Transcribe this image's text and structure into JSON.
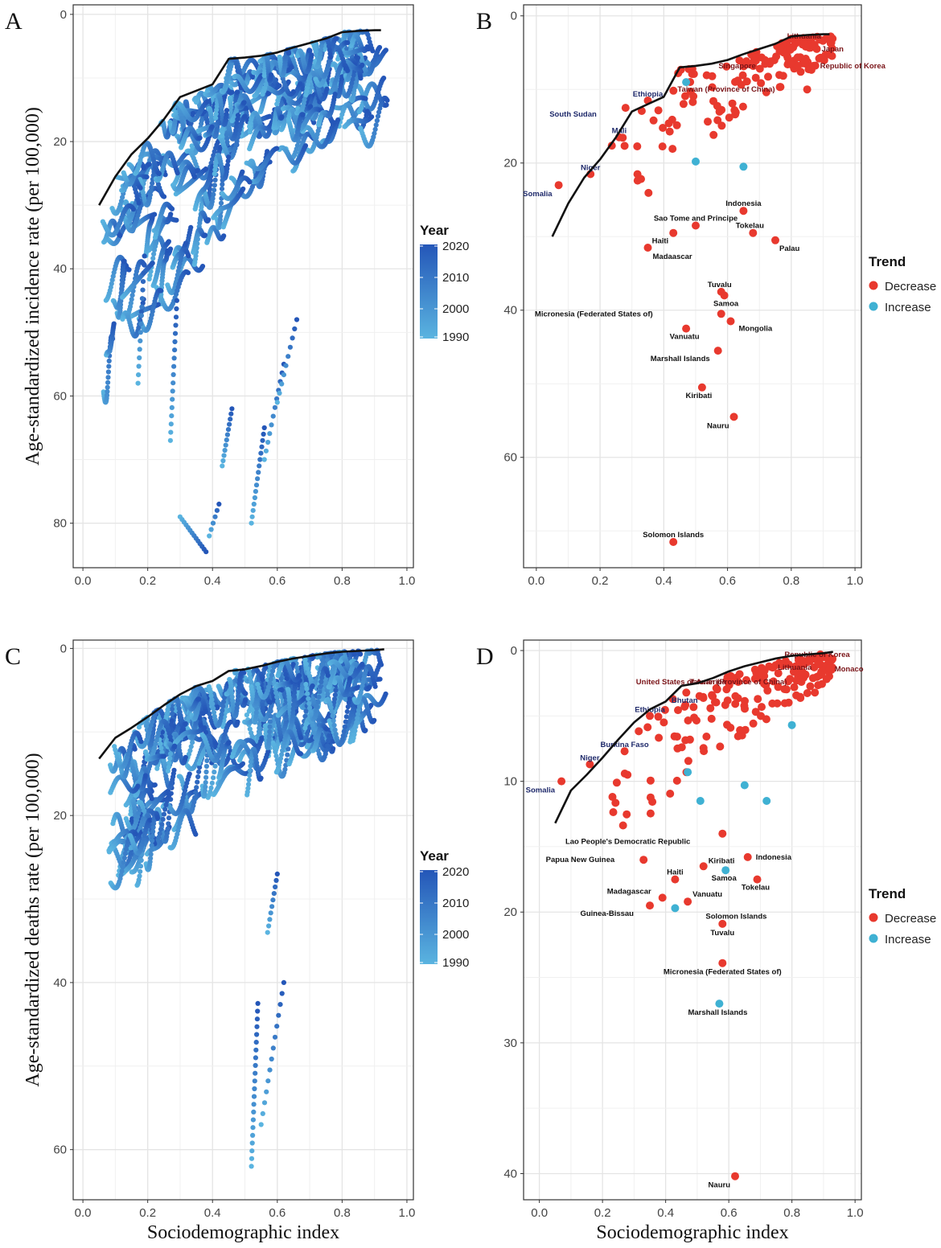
{
  "panels": {
    "A": {
      "letter": "A"
    },
    "B": {
      "letter": "B"
    },
    "C": {
      "letter": "C"
    },
    "D": {
      "letter": "D"
    }
  },
  "axis_titles": {
    "x": "Sociodemographic index",
    "y_top": "Age-standardized incidence rate (per 100,000)",
    "y_bottom": "Age-standardized deaths rate (per 100,000)"
  },
  "legends": {
    "year": {
      "title": "Year",
      "labels": [
        "2020",
        "2010",
        "2000",
        "1990"
      ],
      "color_high": "#2456b8",
      "color_low": "#5ab4e0"
    },
    "trend": {
      "title": "Trend",
      "items": [
        {
          "label": "Decrease",
          "color": "#e8392e"
        },
        {
          "label": "Increase",
          "color": "#3fb1d3"
        }
      ]
    }
  },
  "chart_data": [
    {
      "id": "A",
      "type": "scatter",
      "title": "",
      "xlabel": "Sociodemographic index",
      "ylabel": "Age-standardized incidence rate (per 100,000)",
      "xlim": [
        -0.03,
        1.02
      ],
      "ylim": [
        -1.5,
        87
      ],
      "y_reversed": true,
      "x_ticks": [
        "0.0",
        "0.2",
        "0.4",
        "0.6",
        "0.8",
        "1.0"
      ],
      "y_ticks": [
        "0",
        "20",
        "40",
        "60",
        "80"
      ],
      "frontier": {
        "x": [
          0.05,
          0.1,
          0.15,
          0.2,
          0.25,
          0.3,
          0.35,
          0.4,
          0.45,
          0.5,
          0.55,
          0.6,
          0.65,
          0.7,
          0.75,
          0.8,
          0.85,
          0.9,
          0.92
        ],
        "y": [
          30,
          25.5,
          22,
          19.5,
          16.5,
          13,
          12,
          11,
          7,
          6.8,
          6.5,
          6,
          5.2,
          4.5,
          3.8,
          2.8,
          2.6,
          2.5,
          2.5
        ]
      },
      "series": {
        "color_scale": "Year 1990-2020",
        "n_trajectories": 190
      }
    },
    {
      "id": "B",
      "type": "scatter",
      "title": "",
      "xlabel": "Sociodemographic index",
      "ylabel": "",
      "xlim": [
        -0.04,
        1.02
      ],
      "ylim": [
        -1.5,
        75
      ],
      "y_reversed": true,
      "x_ticks": [
        "0.0",
        "0.2",
        "0.4",
        "0.6",
        "0.8",
        "1.0"
      ],
      "y_ticks": [
        "0",
        "20",
        "40",
        "60"
      ],
      "frontier": {
        "x": [
          0.05,
          0.1,
          0.15,
          0.2,
          0.25,
          0.3,
          0.35,
          0.4,
          0.45,
          0.5,
          0.55,
          0.6,
          0.65,
          0.7,
          0.75,
          0.8,
          0.85,
          0.9,
          0.92
        ],
        "y": [
          30,
          25.5,
          22,
          19.5,
          16.5,
          13,
          12,
          11,
          7,
          6.8,
          6.5,
          6,
          5.2,
          4.5,
          3.8,
          2.8,
          2.6,
          2.5,
          2.5
        ]
      },
      "labeled_points": [
        {
          "name": "Lithuania",
          "x": 0.84,
          "y": 3.5,
          "trend": "Decrease",
          "lab_dx": 0,
          "lab_dy": -7,
          "color": "maroon"
        },
        {
          "name": "Japan",
          "x": 0.88,
          "y": 4.5,
          "trend": "Decrease",
          "lab_dx": 6,
          "lab_dy": 0,
          "color": "maroon"
        },
        {
          "name": "Singapore",
          "x": 0.82,
          "y": 6.8,
          "trend": "Decrease",
          "lab_dx": -52,
          "lab_dy": 0,
          "color": "maroon"
        },
        {
          "name": "Republic of Korea",
          "x": 0.87,
          "y": 6.8,
          "trend": "Decrease",
          "lab_dx": 8,
          "lab_dy": 0,
          "color": "maroon"
        },
        {
          "name": "Taiwan (Province of China)",
          "x": 0.85,
          "y": 10,
          "trend": "Decrease",
          "lab_dx": -40,
          "lab_dy": 0,
          "color": "maroon"
        },
        {
          "name": "Ethiopia",
          "x": 0.35,
          "y": 11.5,
          "trend": "Decrease",
          "lab_dx": 0,
          "lab_dy": -8,
          "color": "navy"
        },
        {
          "name": "South Sudan",
          "x": 0.28,
          "y": 12.5,
          "trend": "Decrease",
          "lab_dx": -36,
          "lab_dy": 8,
          "color": "navy"
        },
        {
          "name": "Mali",
          "x": 0.26,
          "y": 16.5,
          "trend": "Decrease",
          "lab_dx": 0,
          "lab_dy": -8,
          "color": "navy"
        },
        {
          "name": "Niger",
          "x": 0.17,
          "y": 21.5,
          "trend": "Decrease",
          "lab_dx": 0,
          "lab_dy": -8,
          "color": "navy"
        },
        {
          "name": "Somalia",
          "x": 0.07,
          "y": 23,
          "trend": "Decrease",
          "lab_dx": -8,
          "lab_dy": 11,
          "color": "navy"
        },
        {
          "name": "Indonesia",
          "x": 0.65,
          "y": 26.5,
          "trend": "Decrease",
          "lab_dx": 0,
          "lab_dy": -9,
          "color": "black"
        },
        {
          "name": "Sao Tome and Principe",
          "x": 0.5,
          "y": 28.5,
          "trend": "Decrease",
          "lab_dx": 0,
          "lab_dy": -9,
          "color": "black"
        },
        {
          "name": "Tokelau",
          "x": 0.68,
          "y": 29.5,
          "trend": "Decrease",
          "lab_dx": -4,
          "lab_dy": -9,
          "color": "black"
        },
        {
          "name": "Haiti",
          "x": 0.43,
          "y": 29.5,
          "trend": "Decrease",
          "lab_dx": -6,
          "lab_dy": 10,
          "color": "black"
        },
        {
          "name": "Palau",
          "x": 0.75,
          "y": 30.5,
          "trend": "Decrease",
          "lab_dx": 5,
          "lab_dy": 10,
          "color": "black"
        },
        {
          "name": "Madaascar",
          "x": 0.35,
          "y": 31.5,
          "trend": "Decrease",
          "lab_dx": 6,
          "lab_dy": 11,
          "color": "black"
        },
        {
          "name": "Tuvalu",
          "x": 0.58,
          "y": 37.5,
          "trend": "Decrease",
          "lab_dx": -2,
          "lab_dy": -9,
          "color": "black"
        },
        {
          "name": "Samoa",
          "x": 0.59,
          "y": 38,
          "trend": "Decrease",
          "lab_dx": 2,
          "lab_dy": 10,
          "color": "black"
        },
        {
          "name": "Micronesia (Federated States of)",
          "x": 0.58,
          "y": 40.5,
          "trend": "Decrease",
          "lab_dx": -85,
          "lab_dy": 0,
          "color": "black"
        },
        {
          "name": "Mongolia",
          "x": 0.61,
          "y": 41.5,
          "trend": "Decrease",
          "lab_dx": 10,
          "lab_dy": 9,
          "color": "black"
        },
        {
          "name": "Vanuatu",
          "x": 0.47,
          "y": 42.5,
          "trend": "Decrease",
          "lab_dx": -2,
          "lab_dy": 10,
          "color": "black"
        },
        {
          "name": "Marshall Islands",
          "x": 0.57,
          "y": 45.5,
          "trend": "Decrease",
          "lab_dx": -10,
          "lab_dy": 10,
          "color": "black"
        },
        {
          "name": "Kiribati",
          "x": 0.52,
          "y": 50.5,
          "trend": "Decrease",
          "lab_dx": -4,
          "lab_dy": 10,
          "color": "black"
        },
        {
          "name": "Nauru",
          "x": 0.62,
          "y": 54.5,
          "trend": "Decrease",
          "lab_dx": -6,
          "lab_dy": 11,
          "color": "black"
        },
        {
          "name": "Solomon Islands",
          "x": 0.43,
          "y": 71.5,
          "trend": "Decrease",
          "lab_dx": 0,
          "lab_dy": -9,
          "color": "black"
        }
      ],
      "unlabeled_points": {
        "count": 180,
        "increase_points": [
          [
            0.47,
            9
          ],
          [
            0.5,
            19.8
          ],
          [
            0.65,
            20.5
          ]
        ]
      }
    },
    {
      "id": "C",
      "type": "scatter",
      "title": "",
      "xlabel": "Sociodemographic index",
      "ylabel": "Age-standardized deaths rate (per 100,000)",
      "xlim": [
        -0.03,
        1.02
      ],
      "ylim": [
        -1.0,
        66
      ],
      "y_reversed": true,
      "x_ticks": [
        "0.0",
        "0.2",
        "0.4",
        "0.6",
        "0.8",
        "1.0"
      ],
      "y_ticks": [
        "0",
        "20",
        "40",
        "60"
      ],
      "frontier": {
        "x": [
          0.05,
          0.1,
          0.15,
          0.2,
          0.25,
          0.3,
          0.35,
          0.4,
          0.45,
          0.5,
          0.55,
          0.6,
          0.65,
          0.7,
          0.75,
          0.8,
          0.85,
          0.9,
          0.93
        ],
        "y": [
          13.2,
          10.7,
          9.5,
          8.2,
          6.8,
          5.5,
          4.5,
          3.9,
          2.7,
          2.5,
          2.1,
          1.6,
          1.2,
          0.9,
          0.6,
          0.4,
          0.3,
          0.2,
          0.1
        ]
      },
      "series": {
        "color_scale": "Year 1990-2020",
        "n_trajectories": 190
      }
    },
    {
      "id": "D",
      "type": "scatter",
      "title": "",
      "xlabel": "Sociodemographic index",
      "ylabel": "",
      "xlim": [
        -0.05,
        1.02
      ],
      "ylim": [
        -0.8,
        42
      ],
      "y_reversed": true,
      "x_ticks": [
        "0.0",
        "0.2",
        "0.4",
        "0.6",
        "0.8",
        "1.0"
      ],
      "y_ticks": [
        "0",
        "10",
        "20",
        "30",
        "40"
      ],
      "frontier": {
        "x": [
          0.05,
          0.1,
          0.15,
          0.2,
          0.25,
          0.3,
          0.35,
          0.4,
          0.45,
          0.5,
          0.55,
          0.6,
          0.65,
          0.7,
          0.75,
          0.8,
          0.85,
          0.9,
          0.93
        ],
        "y": [
          13.2,
          10.7,
          9.5,
          8.2,
          6.8,
          5.5,
          4.5,
          3.9,
          2.7,
          2.5,
          2.1,
          1.6,
          1.2,
          0.9,
          0.6,
          0.4,
          0.3,
          0.2,
          0.1
        ]
      },
      "labeled_points": [
        {
          "name": "Republic of Korea",
          "x": 0.89,
          "y": 0.3,
          "trend": "Decrease",
          "lab_dx": -4,
          "lab_dy": 0,
          "color": "maroon"
        },
        {
          "name": "Lithuania",
          "x": 0.74,
          "y": 1.3,
          "trend": "Decrease",
          "lab_dx": 6,
          "lab_dy": 0,
          "color": "maroon"
        },
        {
          "name": "Monaco",
          "x": 0.92,
          "y": 1.4,
          "trend": "Decrease",
          "lab_dx": 6,
          "lab_dy": 0,
          "color": "maroon"
        },
        {
          "name": "United States of America",
          "x": 0.63,
          "y": 2.4,
          "trend": "Decrease",
          "lab_dx": -15,
          "lab_dy": 0,
          "color": "maroon"
        },
        {
          "name": "Taiwan (Province of China)",
          "x": 0.83,
          "y": 2.4,
          "trend": "Decrease",
          "lab_dx": -18,
          "lab_dy": 0,
          "color": "maroon"
        },
        {
          "name": "Bhutan",
          "x": 0.46,
          "y": 4.3,
          "trend": "Decrease",
          "lab_dx": 0,
          "lab_dy": -8,
          "color": "navy"
        },
        {
          "name": "Ethiopia",
          "x": 0.35,
          "y": 5.0,
          "trend": "Decrease",
          "lab_dx": 0,
          "lab_dy": -8,
          "color": "navy"
        },
        {
          "name": "Burkina Faso",
          "x": 0.27,
          "y": 7.7,
          "trend": "Decrease",
          "lab_dx": 0,
          "lab_dy": -8,
          "color": "navy"
        },
        {
          "name": "Niger",
          "x": 0.16,
          "y": 8.7,
          "trend": "Decrease",
          "lab_dx": 0,
          "lab_dy": -8,
          "color": "navy"
        },
        {
          "name": "Somalia",
          "x": 0.07,
          "y": 10,
          "trend": "Decrease",
          "lab_dx": -8,
          "lab_dy": 11,
          "color": "navy"
        },
        {
          "name": "Lao People's Democratic Republic",
          "x": 0.58,
          "y": 14.0,
          "trend": "Decrease",
          "lab_dx": -40,
          "lab_dy": 10,
          "color": "black"
        },
        {
          "name": "Papua New Guinea",
          "x": 0.33,
          "y": 16.0,
          "trend": "Decrease",
          "lab_dx": -36,
          "lab_dy": 0,
          "color": "black"
        },
        {
          "name": "Kiribati",
          "x": 0.52,
          "y": 16.5,
          "trend": "Decrease",
          "lab_dx": 6,
          "lab_dy": -7,
          "color": "black"
        },
        {
          "name": "Indonesia",
          "x": 0.66,
          "y": 15.8,
          "trend": "Decrease",
          "lab_dx": 10,
          "lab_dy": 0,
          "color": "black"
        },
        {
          "name": "Haiti",
          "x": 0.43,
          "y": 17.5,
          "trend": "Decrease",
          "lab_dx": 0,
          "lab_dy": -9,
          "color": "black"
        },
        {
          "name": "Samoa",
          "x": 0.59,
          "y": 16.8,
          "trend": "Increase",
          "lab_dx": -2,
          "lab_dy": 10,
          "color": "black"
        },
        {
          "name": "Tokelau",
          "x": 0.69,
          "y": 17.5,
          "trend": "Decrease",
          "lab_dx": -2,
          "lab_dy": 10,
          "color": "black"
        },
        {
          "name": "Madagascar",
          "x": 0.39,
          "y": 18.9,
          "trend": "Decrease",
          "lab_dx": -14,
          "lab_dy": -8,
          "color": "black"
        },
        {
          "name": "Vanuatu",
          "x": 0.47,
          "y": 19.2,
          "trend": "Decrease",
          "lab_dx": 6,
          "lab_dy": -9,
          "color": "black"
        },
        {
          "name": "Guinea-Bissau",
          "x": 0.35,
          "y": 19.5,
          "trend": "Decrease",
          "lab_dx": -20,
          "lab_dy": 10,
          "color": "black"
        },
        {
          "name": "Solomon Islands",
          "x": 0.43,
          "y": 19.7,
          "trend": "Increase",
          "lab_dx": 38,
          "lab_dy": 10,
          "color": "black"
        },
        {
          "name": "Tuvalu",
          "x": 0.58,
          "y": 20.9,
          "trend": "Decrease",
          "lab_dx": 0,
          "lab_dy": 11,
          "color": "black"
        },
        {
          "name": "Micronesia (Federated States of)",
          "x": 0.58,
          "y": 23.9,
          "trend": "Decrease",
          "lab_dx": 0,
          "lab_dy": 11,
          "color": "black"
        },
        {
          "name": "Marshall Islands",
          "x": 0.57,
          "y": 27.0,
          "trend": "Increase",
          "lab_dx": -2,
          "lab_dy": 11,
          "color": "black"
        },
        {
          "name": "Nauru",
          "x": 0.62,
          "y": 40.2,
          "trend": "Decrease",
          "lab_dx": -6,
          "lab_dy": 11,
          "color": "black"
        }
      ],
      "unlabeled_points": {
        "count": 190,
        "increase_points": [
          [
            0.47,
            9.3
          ],
          [
            0.51,
            11.5
          ],
          [
            0.65,
            10.3
          ],
          [
            0.72,
            11.5
          ],
          [
            0.8,
            5.7
          ]
        ]
      }
    }
  ]
}
